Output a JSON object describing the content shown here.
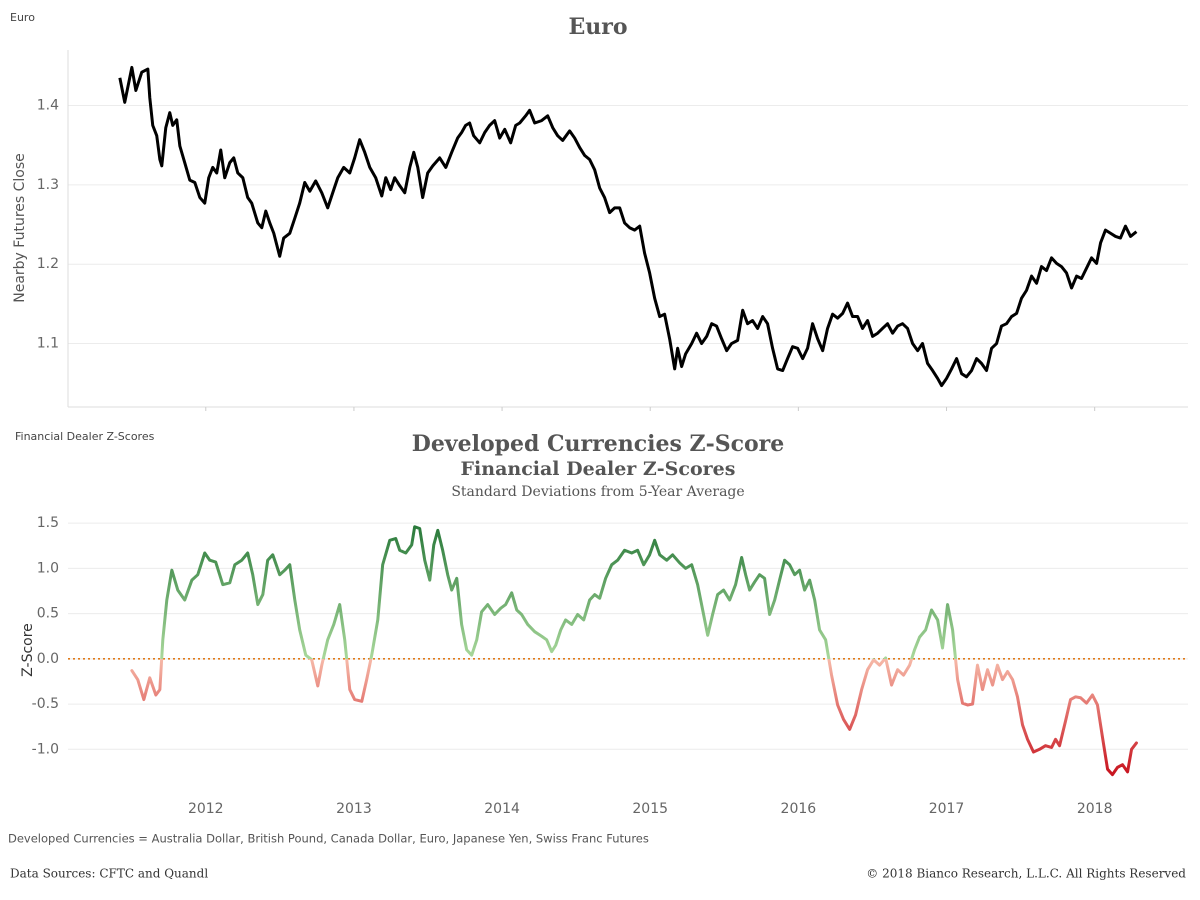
{
  "chart_data": [
    {
      "type": "line",
      "corner_label": "Euro",
      "title": "Euro",
      "ylabel": "Nearby Futures Close",
      "color": "#000000",
      "xlim": [
        2011.07,
        2018.63
      ],
      "xticks": [
        2012,
        2013,
        2014,
        2015,
        2016,
        2017,
        2018
      ],
      "ylim": [
        1.02,
        1.47
      ],
      "yticks": [
        1.1,
        1.2,
        1.3,
        1.4
      ],
      "grid": true,
      "x": [
        2011.42,
        2011.453,
        2011.501,
        2011.528,
        2011.568,
        2011.609,
        2011.622,
        2011.642,
        2011.669,
        2011.69,
        2011.703,
        2011.73,
        2011.757,
        2011.777,
        2011.804,
        2011.825,
        2011.858,
        2011.892,
        2011.926,
        2011.96,
        2011.993,
        2012.02,
        2012.047,
        2012.074,
        2012.101,
        2012.128,
        2012.162,
        2012.189,
        2012.216,
        2012.25,
        2012.283,
        2012.31,
        2012.351,
        2012.378,
        2012.405,
        2012.432,
        2012.459,
        2012.499,
        2012.526,
        2012.567,
        2012.601,
        2012.634,
        2012.668,
        2012.702,
        2012.742,
        2012.783,
        2012.823,
        2012.864,
        2012.891,
        2012.931,
        2012.972,
        2013.005,
        2013.039,
        2013.073,
        2013.107,
        2013.147,
        2013.188,
        2013.215,
        2013.248,
        2013.275,
        2013.309,
        2013.343,
        2013.377,
        2013.404,
        2013.431,
        2013.464,
        2013.498,
        2013.532,
        2013.579,
        2013.62,
        2013.66,
        2013.7,
        2013.727,
        2013.754,
        2013.781,
        2013.808,
        2013.849,
        2013.883,
        2013.916,
        2013.95,
        2013.984,
        2014.018,
        2014.058,
        2014.092,
        2014.119,
        2014.159,
        2014.186,
        2014.22,
        2014.267,
        2014.308,
        2014.342,
        2014.375,
        2014.409,
        2014.456,
        2014.49,
        2014.524,
        2014.558,
        2014.591,
        2014.625,
        2014.659,
        2014.692,
        2014.726,
        2014.76,
        2014.794,
        2014.827,
        2014.861,
        2014.895,
        2014.929,
        2014.962,
        2014.996,
        2015.03,
        2015.064,
        2015.097,
        2015.131,
        2015.165,
        2015.185,
        2015.212,
        2015.239,
        2015.28,
        2015.313,
        2015.347,
        2015.381,
        2015.415,
        2015.448,
        2015.482,
        2015.516,
        2015.549,
        2015.59,
        2015.624,
        2015.657,
        2015.691,
        2015.725,
        2015.759,
        2015.792,
        2015.826,
        2015.86,
        2015.894,
        2015.927,
        2015.961,
        2015.995,
        2016.029,
        2016.062,
        2016.096,
        2016.13,
        2016.164,
        2016.197,
        2016.231,
        2016.265,
        2016.299,
        2016.332,
        2016.366,
        2016.4,
        2016.433,
        2016.467,
        2016.501,
        2016.535,
        2016.568,
        2016.602,
        2016.636,
        2016.67,
        2016.703,
        2016.737,
        2016.771,
        2016.805,
        2016.838,
        2016.872,
        2016.906,
        2016.94,
        2016.967,
        2017.0,
        2017.034,
        2017.068,
        2017.102,
        2017.135,
        2017.169,
        2017.203,
        2017.236,
        2017.27,
        2017.304,
        2017.338,
        2017.371,
        2017.405,
        2017.439,
        2017.473,
        2017.506,
        2017.54,
        2017.574,
        2017.608,
        2017.641,
        2017.675,
        2017.709,
        2017.743,
        2017.776,
        2017.81,
        2017.844,
        2017.878,
        2017.911,
        2017.945,
        2017.979,
        2018.013,
        2018.04,
        2018.073,
        2018.107,
        2018.141,
        2018.174,
        2018.208,
        2018.242,
        2018.282
      ],
      "values": [
        1.435,
        1.404,
        1.448,
        1.419,
        1.442,
        1.446,
        1.41,
        1.375,
        1.362,
        1.332,
        1.324,
        1.372,
        1.391,
        1.375,
        1.382,
        1.349,
        1.328,
        1.306,
        1.303,
        1.284,
        1.277,
        1.309,
        1.322,
        1.315,
        1.344,
        1.309,
        1.328,
        1.334,
        1.315,
        1.309,
        1.284,
        1.277,
        1.252,
        1.246,
        1.267,
        1.252,
        1.239,
        1.21,
        1.233,
        1.239,
        1.258,
        1.277,
        1.303,
        1.292,
        1.305,
        1.29,
        1.271,
        1.294,
        1.309,
        1.322,
        1.315,
        1.334,
        1.357,
        1.341,
        1.322,
        1.309,
        1.286,
        1.309,
        1.294,
        1.309,
        1.299,
        1.29,
        1.322,
        1.341,
        1.322,
        1.284,
        1.315,
        1.324,
        1.334,
        1.322,
        1.341,
        1.359,
        1.366,
        1.375,
        1.378,
        1.362,
        1.353,
        1.366,
        1.375,
        1.381,
        1.359,
        1.37,
        1.353,
        1.375,
        1.378,
        1.387,
        1.394,
        1.378,
        1.381,
        1.387,
        1.372,
        1.362,
        1.356,
        1.368,
        1.359,
        1.347,
        1.337,
        1.332,
        1.319,
        1.296,
        1.284,
        1.265,
        1.271,
        1.271,
        1.252,
        1.246,
        1.243,
        1.248,
        1.214,
        1.189,
        1.157,
        1.134,
        1.137,
        1.106,
        1.068,
        1.094,
        1.071,
        1.087,
        1.1,
        1.113,
        1.1,
        1.109,
        1.125,
        1.122,
        1.106,
        1.091,
        1.1,
        1.104,
        1.142,
        1.125,
        1.129,
        1.119,
        1.134,
        1.125,
        1.094,
        1.068,
        1.066,
        1.081,
        1.096,
        1.094,
        1.081,
        1.094,
        1.125,
        1.106,
        1.091,
        1.119,
        1.137,
        1.132,
        1.138,
        1.151,
        1.134,
        1.134,
        1.119,
        1.129,
        1.109,
        1.113,
        1.119,
        1.125,
        1.113,
        1.122,
        1.125,
        1.119,
        1.1,
        1.091,
        1.1,
        1.075,
        1.066,
        1.056,
        1.047,
        1.056,
        1.068,
        1.081,
        1.062,
        1.058,
        1.066,
        1.081,
        1.075,
        1.066,
        1.094,
        1.1,
        1.122,
        1.125,
        1.134,
        1.138,
        1.157,
        1.167,
        1.185,
        1.176,
        1.197,
        1.192,
        1.208,
        1.201,
        1.197,
        1.189,
        1.17,
        1.185,
        1.182,
        1.195,
        1.208,
        1.201,
        1.227,
        1.243,
        1.239,
        1.235,
        1.233,
        1.248,
        1.235,
        1.241
      ]
    },
    {
      "type": "gradient-line",
      "corner_label": "Financial Dealer Z-Scores",
      "title": "Developed Currencies Z-Score",
      "subtitle": "Financial Dealer Z-Scores",
      "subtitle2": "Standard Deviations from 5-Year Average",
      "ylabel": "Z-Score",
      "color_scale": [
        "#c8141f",
        "#f6b9a8",
        "#a9d89b",
        "#2a7a3b"
      ],
      "reference_line": {
        "value": 0,
        "color": "#e07b1a"
      },
      "xlim": [
        2011.07,
        2018.63
      ],
      "xticks": [
        2012,
        2013,
        2014,
        2015,
        2016,
        2017,
        2018
      ],
      "ylim": [
        -1.45,
        1.59
      ],
      "yticks": [
        1.5,
        {
          "value": 1,
          "label": "1.0"
        },
        0.5,
        {
          "value": 0,
          "label": "0.0"
        },
        -0.5,
        {
          "value": -1,
          "label": "-1.0"
        }
      ],
      "grid": true,
      "x": [
        2011.501,
        2011.541,
        2011.582,
        2011.622,
        2011.663,
        2011.69,
        2011.71,
        2011.737,
        2011.771,
        2011.811,
        2011.858,
        2011.906,
        2011.946,
        2011.993,
        2012.027,
        2012.067,
        2012.115,
        2012.162,
        2012.196,
        2012.243,
        2012.283,
        2012.317,
        2012.351,
        2012.385,
        2012.418,
        2012.452,
        2012.499,
        2012.533,
        2012.567,
        2012.601,
        2012.634,
        2012.675,
        2012.715,
        2012.756,
        2012.783,
        2012.823,
        2012.864,
        2012.904,
        2012.938,
        2012.972,
        2013.005,
        2013.053,
        2013.086,
        2013.12,
        2013.161,
        2013.194,
        2013.242,
        2013.282,
        2013.309,
        2013.35,
        2013.39,
        2013.41,
        2013.444,
        2013.478,
        2013.512,
        2013.539,
        2013.566,
        2013.599,
        2013.633,
        2013.66,
        2013.694,
        2013.727,
        2013.761,
        2013.795,
        2013.829,
        2013.862,
        2013.903,
        2013.95,
        2013.991,
        2014.024,
        2014.065,
        2014.099,
        2014.132,
        2014.173,
        2014.22,
        2014.267,
        2014.301,
        2014.335,
        2014.362,
        2014.396,
        2014.429,
        2014.47,
        2014.51,
        2014.551,
        2014.591,
        2014.625,
        2014.659,
        2014.699,
        2014.74,
        2014.78,
        2014.827,
        2014.875,
        2014.915,
        2014.956,
        2014.996,
        2015.03,
        2015.064,
        2015.111,
        2015.151,
        2015.199,
        2015.239,
        2015.28,
        2015.32,
        2015.354,
        2015.388,
        2015.421,
        2015.455,
        2015.495,
        2015.536,
        2015.576,
        2015.617,
        2015.644,
        2015.671,
        2015.705,
        2015.738,
        2015.772,
        2015.806,
        2015.84,
        2015.873,
        2015.907,
        2015.941,
        2015.975,
        2016.008,
        2016.042,
        2016.076,
        2016.11,
        2016.143,
        2016.184,
        2016.224,
        2016.265,
        2016.305,
        2016.346,
        2016.386,
        2016.427,
        2016.467,
        2016.508,
        2016.548,
        2016.589,
        2016.629,
        2016.67,
        2016.71,
        2016.751,
        2016.784,
        2016.818,
        2016.859,
        2016.899,
        2016.94,
        2016.973,
        2017.007,
        2017.041,
        2017.075,
        2017.108,
        2017.142,
        2017.176,
        2017.209,
        2017.243,
        2017.277,
        2017.311,
        2017.344,
        2017.378,
        2017.412,
        2017.446,
        2017.479,
        2017.513,
        2017.547,
        2017.587,
        2017.628,
        2017.668,
        2017.709,
        2017.736,
        2017.763,
        2017.803,
        2017.837,
        2017.871,
        2017.905,
        2017.945,
        2017.985,
        2018.019,
        2018.053,
        2018.087,
        2018.12,
        2018.154,
        2018.188,
        2018.222,
        2018.249,
        2018.282
      ],
      "values": [
        -0.13,
        -0.23,
        -0.45,
        -0.21,
        -0.4,
        -0.34,
        0.21,
        0.65,
        0.98,
        0.76,
        0.65,
        0.87,
        0.93,
        1.17,
        1.09,
        1.07,
        0.82,
        0.84,
        1.04,
        1.09,
        1.17,
        0.93,
        0.6,
        0.71,
        1.09,
        1.15,
        0.93,
        0.98,
        1.04,
        0.65,
        0.32,
        0.04,
        -0.01,
        -0.3,
        -0.07,
        0.21,
        0.38,
        0.6,
        0.21,
        -0.34,
        -0.45,
        -0.47,
        -0.23,
        0.04,
        0.43,
        1.04,
        1.31,
        1.33,
        1.2,
        1.17,
        1.26,
        1.46,
        1.44,
        1.09,
        0.87,
        1.26,
        1.42,
        1.2,
        0.93,
        0.76,
        0.89,
        0.38,
        0.1,
        0.04,
        0.21,
        0.52,
        0.6,
        0.49,
        0.56,
        0.6,
        0.73,
        0.54,
        0.49,
        0.38,
        0.3,
        0.25,
        0.21,
        0.08,
        0.15,
        0.32,
        0.43,
        0.38,
        0.49,
        0.43,
        0.65,
        0.71,
        0.67,
        0.89,
        1.04,
        1.09,
        1.2,
        1.17,
        1.2,
        1.04,
        1.15,
        1.31,
        1.15,
        1.09,
        1.15,
        1.06,
        1.0,
        1.04,
        0.82,
        0.54,
        0.26,
        0.49,
        0.71,
        0.76,
        0.65,
        0.82,
        1.12,
        0.93,
        0.76,
        0.85,
        0.93,
        0.89,
        0.49,
        0.65,
        0.87,
        1.09,
        1.04,
        0.93,
        0.98,
        0.76,
        0.87,
        0.65,
        0.32,
        0.21,
        -0.18,
        -0.51,
        -0.67,
        -0.78,
        -0.62,
        -0.34,
        -0.12,
        -0.01,
        -0.07,
        0.01,
        -0.29,
        -0.12,
        -0.18,
        -0.07,
        0.1,
        0.24,
        0.32,
        0.54,
        0.43,
        0.12,
        0.6,
        0.32,
        -0.23,
        -0.49,
        -0.51,
        -0.5,
        -0.07,
        -0.34,
        -0.12,
        -0.29,
        -0.07,
        -0.23,
        -0.14,
        -0.23,
        -0.42,
        -0.73,
        -0.89,
        -1.03,
        -1.0,
        -0.96,
        -0.98,
        -0.89,
        -0.96,
        -0.69,
        -0.45,
        -0.42,
        -0.43,
        -0.49,
        -0.4,
        -0.51,
        -0.87,
        -1.22,
        -1.28,
        -1.2,
        -1.17,
        -1.25,
        -1.0,
        -0.93
      ]
    }
  ],
  "footer": {
    "note": "Developed Currencies = Australia Dollar, British Pound, Canada Dollar, Euro, Japanese Yen, Swiss Franc Futures",
    "sources": "Data Sources: CFTC and Quandl",
    "copyright": "© 2018 Bianco Research, L.L.C. All Rights Reserved"
  }
}
